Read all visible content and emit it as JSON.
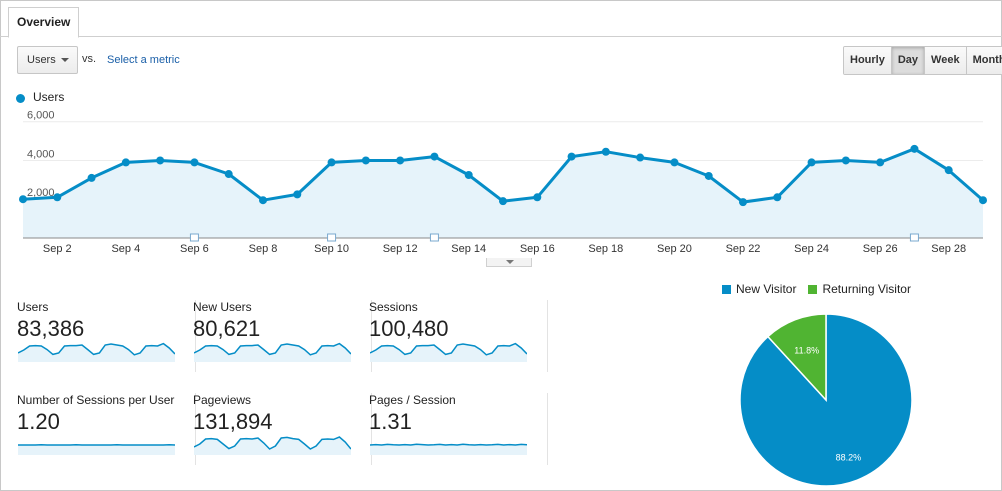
{
  "tabs": {
    "overview": "Overview"
  },
  "toolbar": {
    "metric": "Users",
    "vs": "vs.",
    "select_metric": "Select a metric",
    "periods": [
      "Hourly",
      "Day",
      "Week",
      "Month"
    ],
    "active_period": "Day"
  },
  "colors": {
    "line": "#058dc7",
    "fill": "#e6f3fa",
    "new_visitor": "#058dc7",
    "returning_visitor": "#50b432"
  },
  "chart_data": [
    {
      "type": "area",
      "series": [
        {
          "name": "Users",
          "values": [
            2000,
            2100,
            3100,
            3900,
            4000,
            3900,
            3300,
            1950,
            2250,
            3900,
            4000,
            4000,
            4200,
            3250,
            1900,
            2100,
            4200,
            4450,
            4150,
            3900,
            3200,
            1850,
            2100,
            3900,
            4000,
            3900,
            4600,
            3500,
            1950
          ]
        }
      ],
      "x": [
        "Sep 1",
        "Sep 2",
        "Sep 3",
        "Sep 4",
        "Sep 5",
        "Sep 6",
        "Sep 7",
        "Sep 8",
        "Sep 9",
        "Sep 10",
        "Sep 11",
        "Sep 12",
        "Sep 13",
        "Sep 14",
        "Sep 15",
        "Sep 16",
        "Sep 17",
        "Sep 18",
        "Sep 19",
        "Sep 20",
        "Sep 21",
        "Sep 22",
        "Sep 23",
        "Sep 24",
        "Sep 25",
        "Sep 26",
        "Sep 27",
        "Sep 28",
        "Sep 29"
      ],
      "x_tick_labels": [
        "Sep 2",
        "Sep 4",
        "Sep 6",
        "Sep 8",
        "Sep 10",
        "Sep 12",
        "Sep 14",
        "Sep 16",
        "Sep 18",
        "Sep 20",
        "Sep 22",
        "Sep 24",
        "Sep 26",
        "Sep 28"
      ],
      "y_tick_labels": [
        "2,000",
        "4,000",
        "6,000"
      ],
      "ylim": [
        0,
        6500
      ],
      "annotation_dates": [
        "Sep 6",
        "Sep 10",
        "Sep 13",
        "Sep 27"
      ]
    },
    {
      "type": "pie",
      "labels": [
        "New Visitor",
        "Returning Visitor"
      ],
      "values": [
        88.2,
        11.8
      ],
      "data_labels": [
        "88.2%",
        "11.8%"
      ]
    }
  ],
  "scorecards": [
    {
      "label": "Users",
      "value": "83,386",
      "trend": [
        0.45,
        0.6,
        0.8,
        0.82,
        0.8,
        0.62,
        0.38,
        0.45,
        0.8,
        0.82,
        0.82,
        0.85,
        0.62,
        0.38,
        0.45,
        0.85,
        0.9,
        0.85,
        0.8,
        0.62,
        0.36,
        0.45,
        0.8,
        0.82,
        0.8,
        0.92,
        0.7,
        0.4
      ]
    },
    {
      "label": "New Users",
      "value": "80,621",
      "trend": [
        0.45,
        0.6,
        0.8,
        0.82,
        0.8,
        0.62,
        0.38,
        0.45,
        0.8,
        0.82,
        0.82,
        0.85,
        0.62,
        0.38,
        0.45,
        0.85,
        0.9,
        0.85,
        0.8,
        0.62,
        0.36,
        0.45,
        0.8,
        0.82,
        0.8,
        0.92,
        0.7,
        0.4
      ]
    },
    {
      "label": "Sessions",
      "value": "100,480",
      "trend": [
        0.45,
        0.6,
        0.8,
        0.82,
        0.8,
        0.62,
        0.38,
        0.45,
        0.8,
        0.82,
        0.82,
        0.85,
        0.62,
        0.38,
        0.45,
        0.85,
        0.9,
        0.85,
        0.8,
        0.62,
        0.36,
        0.45,
        0.8,
        0.82,
        0.8,
        0.92,
        0.7,
        0.4
      ]
    },
    {
      "label": "Number of Sessions per User",
      "value": "1.20",
      "trend": [
        0.5,
        0.5,
        0.5,
        0.5,
        0.51,
        0.5,
        0.5,
        0.5,
        0.5,
        0.5,
        0.51,
        0.5,
        0.5,
        0.5,
        0.5,
        0.5,
        0.5,
        0.51,
        0.5,
        0.5,
        0.5,
        0.5,
        0.5,
        0.5,
        0.5,
        0.5,
        0.51,
        0.5
      ]
    },
    {
      "label": "Pageviews",
      "value": "131,894",
      "trend": [
        0.4,
        0.55,
        0.8,
        0.82,
        0.78,
        0.55,
        0.32,
        0.45,
        0.8,
        0.82,
        0.8,
        0.85,
        0.6,
        0.3,
        0.45,
        0.85,
        0.88,
        0.82,
        0.78,
        0.55,
        0.3,
        0.45,
        0.78,
        0.8,
        0.78,
        0.9,
        0.65,
        0.3
      ]
    },
    {
      "label": "Pages / Session",
      "value": "1.31",
      "trend": [
        0.5,
        0.52,
        0.5,
        0.53,
        0.51,
        0.5,
        0.52,
        0.5,
        0.54,
        0.52,
        0.5,
        0.51,
        0.53,
        0.5,
        0.52,
        0.5,
        0.54,
        0.51,
        0.5,
        0.52,
        0.5,
        0.51,
        0.53,
        0.5,
        0.52,
        0.5,
        0.53,
        0.51
      ]
    }
  ]
}
